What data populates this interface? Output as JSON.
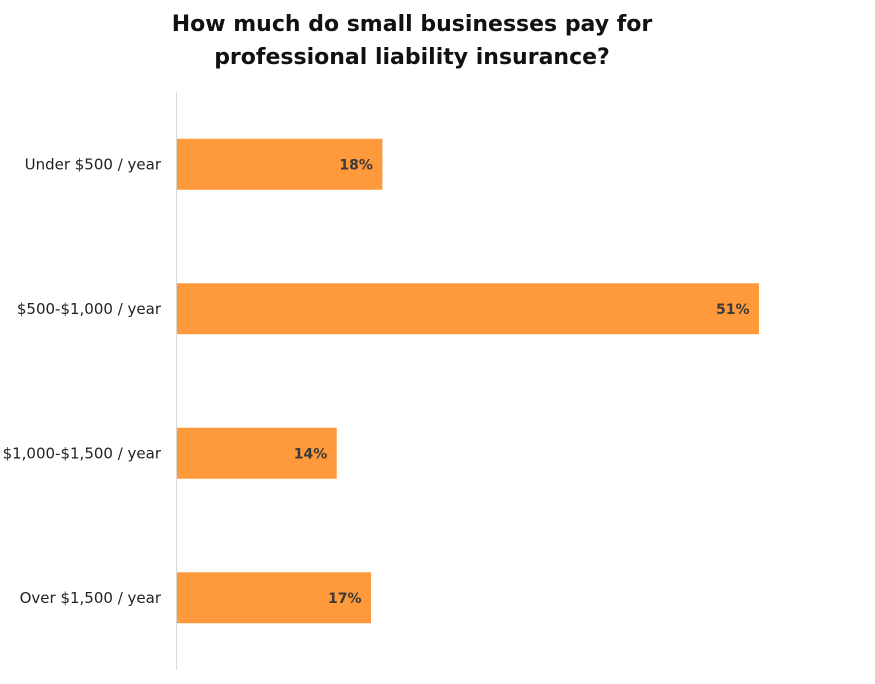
{
  "chart_data": {
    "type": "bar",
    "orientation": "horizontal",
    "title": "How much do small businesses pay for professional liability insurance?",
    "title_lines": [
      "How much do small businesses pay for",
      "professional liability insurance?"
    ],
    "categories": [
      "Under $500 / year",
      "$500-$1,000 / year",
      "$1,000-$1,500 / year",
      "Over $1,500 / year"
    ],
    "values": [
      18,
      51,
      14,
      17
    ],
    "value_labels": [
      "18%",
      "51%",
      "14%",
      "17%"
    ],
    "unit": "%",
    "xlim": [
      0,
      51
    ],
    "xlabel": "",
    "ylabel": "",
    "grid": false,
    "legend": "none",
    "bar_color": "#FF9A3C",
    "axis_color": "#d9d9d9"
  }
}
